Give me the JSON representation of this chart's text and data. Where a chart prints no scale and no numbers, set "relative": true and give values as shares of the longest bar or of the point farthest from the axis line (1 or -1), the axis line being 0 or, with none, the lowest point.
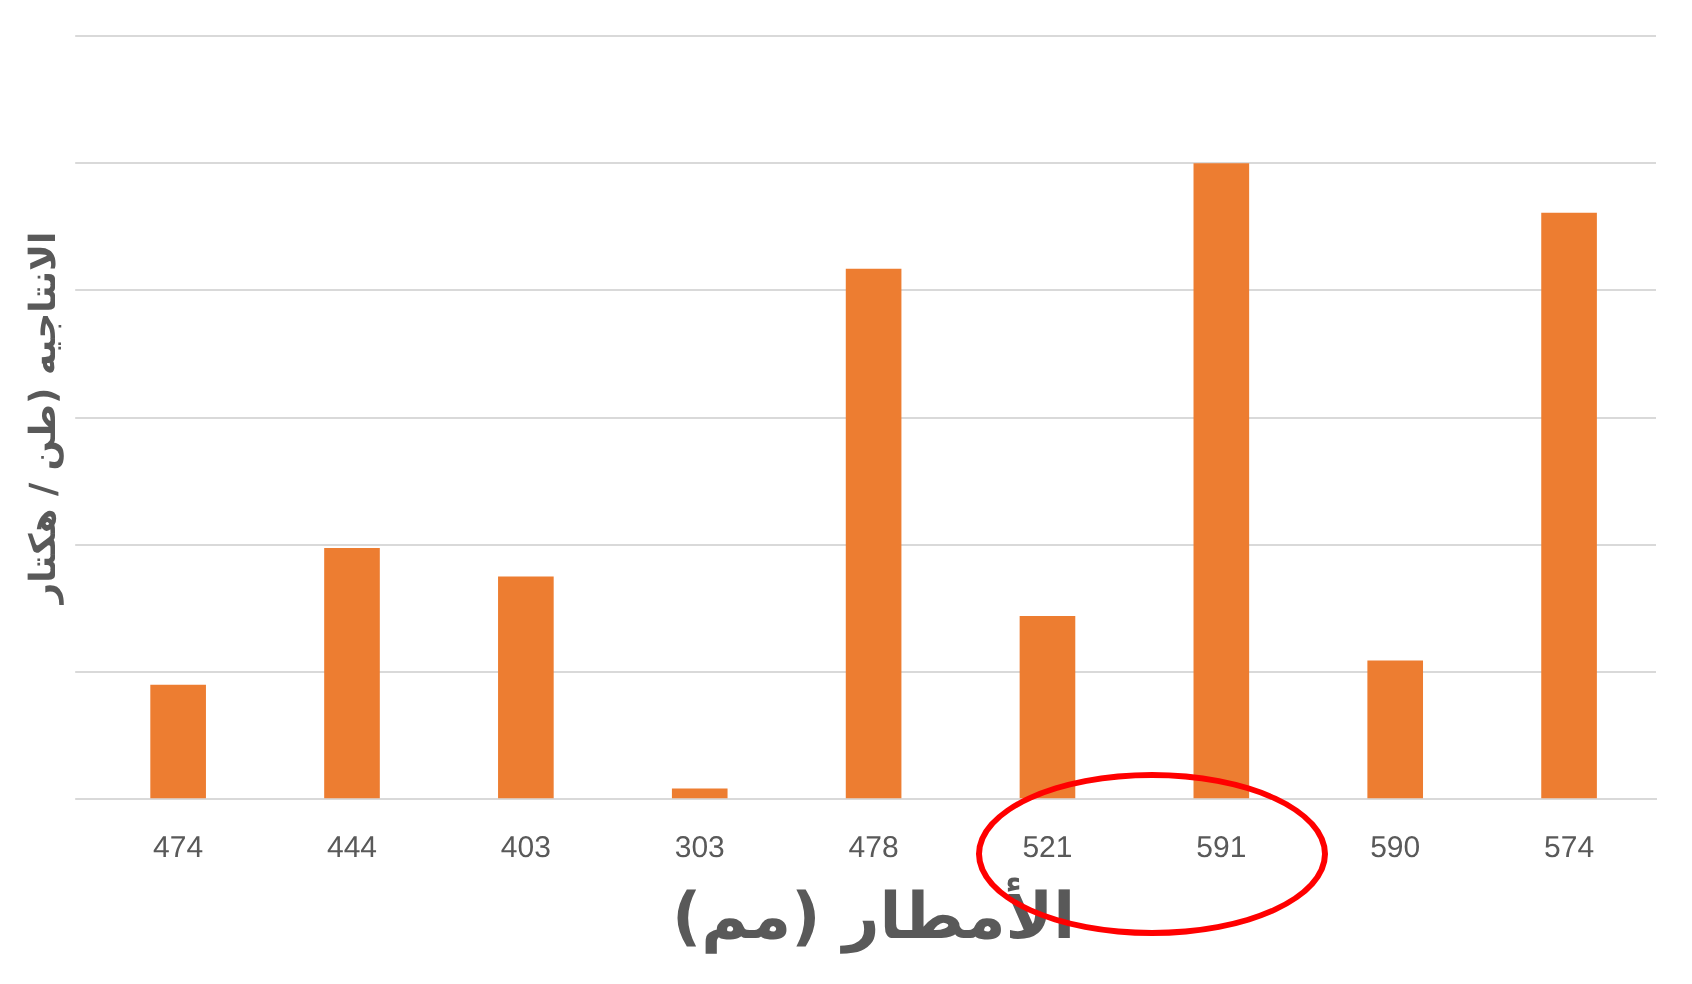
{
  "chart_data": {
    "type": "bar",
    "relative": true,
    "xlabel": "الأمطار (مم)",
    "ylabel": "الانتاجيه (طن / هكتار",
    "categories": [
      "474",
      "444",
      "403",
      "303",
      "478",
      "521",
      "591",
      "590",
      "574"
    ],
    "values": [
      0.18,
      0.395,
      0.35,
      0.017,
      0.834,
      0.288,
      1,
      0.218,
      0.922
    ],
    "color": "#ed7d31",
    "grid": "y",
    "legend": false
  }
}
